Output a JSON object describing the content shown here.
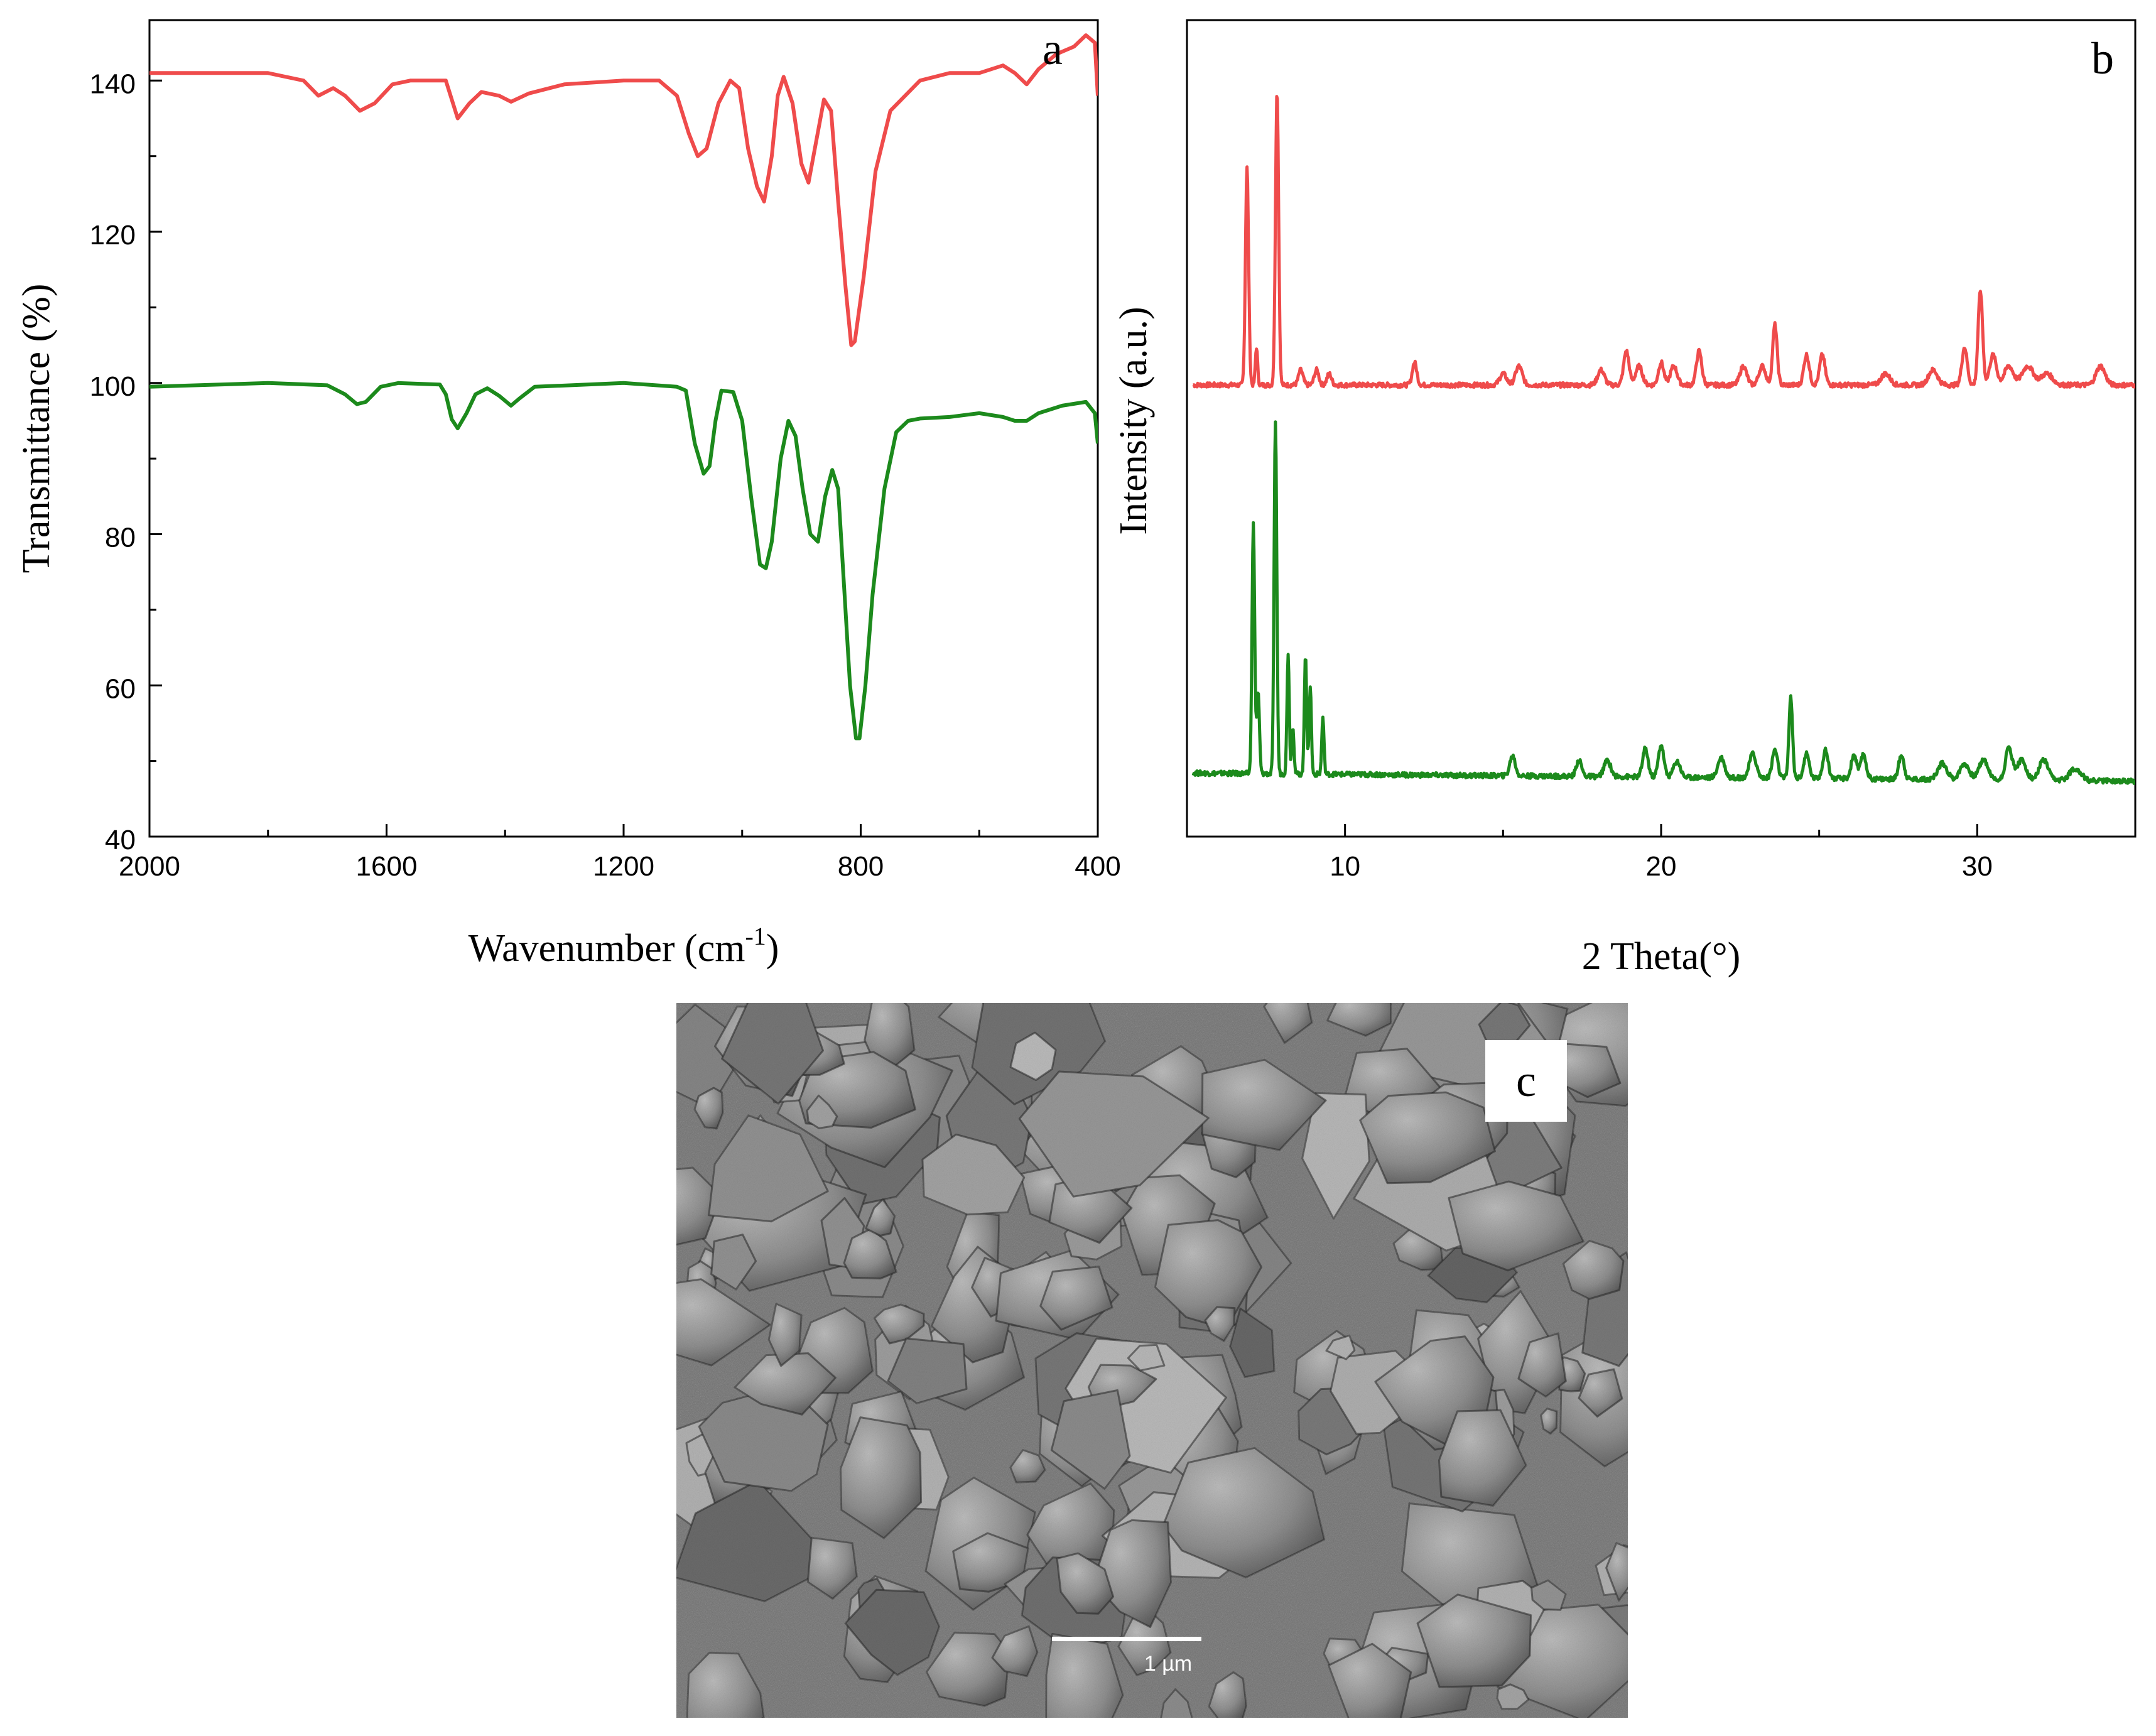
{
  "chart_data": [
    {
      "type": "line",
      "panel_label": "a",
      "xlabel": "Wavenumber (cm",
      "xlabel_sup": "-1",
      "xlabel_end": ")",
      "ylabel": "Transmittance (%)",
      "xlim": [
        2000,
        400
      ],
      "ylim": [
        40,
        148
      ],
      "x_ticks": [
        2000,
        1600,
        1200,
        800,
        400
      ],
      "y_ticks": [
        40,
        60,
        80,
        100,
        120,
        140
      ],
      "series": [
        {
          "color": "#ef4b4b",
          "points": [
            [
              2000,
              141
            ],
            [
              1800,
              141
            ],
            [
              1740,
              140
            ],
            [
              1715,
              138
            ],
            [
              1690,
              139
            ],
            [
              1670,
              138
            ],
            [
              1645,
              136
            ],
            [
              1620,
              137
            ],
            [
              1590,
              139.5
            ],
            [
              1560,
              140
            ],
            [
              1500,
              140
            ],
            [
              1480,
              135
            ],
            [
              1460,
              137
            ],
            [
              1440,
              138.5
            ],
            [
              1410,
              138
            ],
            [
              1390,
              137.2
            ],
            [
              1360,
              138.3
            ],
            [
              1300,
              139.5
            ],
            [
              1200,
              140
            ],
            [
              1140,
              140
            ],
            [
              1110,
              138
            ],
            [
              1090,
              133
            ],
            [
              1075,
              130
            ],
            [
              1060,
              131
            ],
            [
              1040,
              137
            ],
            [
              1020,
              140
            ],
            [
              1005,
              139
            ],
            [
              990,
              131
            ],
            [
              975,
              126
            ],
            [
              963,
              124
            ],
            [
              950,
              130
            ],
            [
              940,
              138
            ],
            [
              930,
              140.5
            ],
            [
              915,
              137
            ],
            [
              900,
              129
            ],
            [
              888,
              126.5
            ],
            [
              875,
              132
            ],
            [
              862,
              137.5
            ],
            [
              850,
              136
            ],
            [
              838,
              124
            ],
            [
              826,
              113
            ],
            [
              816,
              105
            ],
            [
              810,
              105.5
            ],
            [
              795,
              114
            ],
            [
              775,
              128
            ],
            [
              750,
              136
            ],
            [
              700,
              140
            ],
            [
              650,
              141
            ],
            [
              600,
              141
            ],
            [
              560,
              142
            ],
            [
              540,
              141
            ],
            [
              520,
              139.5
            ],
            [
              500,
              141.5
            ],
            [
              470,
              143.5
            ],
            [
              440,
              144.5
            ],
            [
              420,
              146
            ],
            [
              405,
              145
            ],
            [
              400,
              138
            ]
          ]
        },
        {
          "color": "#1c8a1c",
          "points": [
            [
              2000,
              99.5
            ],
            [
              1800,
              100
            ],
            [
              1700,
              99.7
            ],
            [
              1670,
              98.5
            ],
            [
              1650,
              97.2
            ],
            [
              1635,
              97.5
            ],
            [
              1610,
              99.5
            ],
            [
              1580,
              100
            ],
            [
              1510,
              99.8
            ],
            [
              1500,
              98.5
            ],
            [
              1490,
              95.2
            ],
            [
              1480,
              94
            ],
            [
              1465,
              96
            ],
            [
              1450,
              98.5
            ],
            [
              1430,
              99.3
            ],
            [
              1410,
              98.3
            ],
            [
              1390,
              97
            ],
            [
              1375,
              98
            ],
            [
              1350,
              99.5
            ],
            [
              1200,
              100
            ],
            [
              1110,
              99.5
            ],
            [
              1095,
              99
            ],
            [
              1080,
              92
            ],
            [
              1065,
              88
            ],
            [
              1055,
              89
            ],
            [
              1045,
              95
            ],
            [
              1035,
              99
            ],
            [
              1015,
              98.8
            ],
            [
              1000,
              95
            ],
            [
              985,
              85
            ],
            [
              970,
              76
            ],
            [
              960,
              75.5
            ],
            [
              950,
              79
            ],
            [
              935,
              90
            ],
            [
              922,
              95
            ],
            [
              910,
              93
            ],
            [
              898,
              86
            ],
            [
              885,
              80
            ],
            [
              872,
              79
            ],
            [
              860,
              85
            ],
            [
              848,
              88.5
            ],
            [
              838,
              86
            ],
            [
              828,
              73
            ],
            [
              818,
              60
            ],
            [
              808,
              53
            ],
            [
              802,
              53
            ],
            [
              792,
              60
            ],
            [
              780,
              72
            ],
            [
              760,
              86
            ],
            [
              740,
              93.5
            ],
            [
              720,
              95
            ],
            [
              700,
              95.3
            ],
            [
              650,
              95.5
            ],
            [
              600,
              96
            ],
            [
              560,
              95.5
            ],
            [
              540,
              95
            ],
            [
              520,
              95
            ],
            [
              500,
              96
            ],
            [
              460,
              97
            ],
            [
              420,
              97.5
            ],
            [
              405,
              96
            ],
            [
              400,
              92
            ]
          ]
        }
      ]
    },
    {
      "type": "line",
      "panel_label": "b",
      "xlabel": "2 Theta(°)",
      "ylabel": "Intensity (a.u.)",
      "xlim": [
        5,
        35
      ],
      "x_ticks": [
        10,
        20,
        30
      ],
      "y_tick_labels": "none",
      "series": [
        {
          "color": "#ef4b4b",
          "baseline": 0.02,
          "peaks": [
            [
              6.9,
              0.58,
              0.07
            ],
            [
              7.2,
              0.1,
              0.05
            ],
            [
              7.85,
              0.78,
              0.07
            ],
            [
              8.6,
              0.04,
              0.1
            ],
            [
              9.1,
              0.04,
              0.1
            ],
            [
              9.5,
              0.03,
              0.1
            ],
            [
              12.2,
              0.06,
              0.1
            ],
            [
              15,
              0.03,
              0.15
            ],
            [
              15.5,
              0.05,
              0.15
            ],
            [
              18.1,
              0.04,
              0.15
            ],
            [
              18.9,
              0.09,
              0.12
            ],
            [
              19.3,
              0.05,
              0.15
            ],
            [
              20,
              0.06,
              0.12
            ],
            [
              20.4,
              0.05,
              0.15
            ],
            [
              21.2,
              0.09,
              0.12
            ],
            [
              22.6,
              0.05,
              0.15
            ],
            [
              23.2,
              0.05,
              0.15
            ],
            [
              23.6,
              0.16,
              0.1
            ],
            [
              24.6,
              0.08,
              0.12
            ],
            [
              25.1,
              0.08,
              0.12
            ],
            [
              27.1,
              0.03,
              0.2
            ],
            [
              28.6,
              0.04,
              0.2
            ],
            [
              29.6,
              0.1,
              0.12
            ],
            [
              30.1,
              0.25,
              0.1
            ],
            [
              30.5,
              0.08,
              0.15
            ],
            [
              31,
              0.05,
              0.2
            ],
            [
              31.6,
              0.05,
              0.25
            ],
            [
              32.2,
              0.03,
              0.25
            ],
            [
              33.9,
              0.05,
              0.2
            ]
          ]
        },
        {
          "color": "#1c8a1c",
          "baseline": 0.02,
          "peaks": [
            [
              7.1,
              0.62,
              0.06
            ],
            [
              7.25,
              0.2,
              0.06
            ],
            [
              7.8,
              0.88,
              0.06
            ],
            [
              8.2,
              0.3,
              0.05
            ],
            [
              8.35,
              0.12,
              0.05
            ],
            [
              8.75,
              0.3,
              0.05
            ],
            [
              8.9,
              0.22,
              0.05
            ],
            [
              9.3,
              0.14,
              0.05
            ],
            [
              15.3,
              0.05,
              0.12
            ],
            [
              17.4,
              0.04,
              0.12
            ],
            [
              18.3,
              0.04,
              0.15
            ],
            [
              19.5,
              0.07,
              0.12
            ],
            [
              20,
              0.08,
              0.12
            ],
            [
              20.5,
              0.04,
              0.15
            ],
            [
              21.9,
              0.05,
              0.15
            ],
            [
              22.9,
              0.06,
              0.15
            ],
            [
              23.6,
              0.07,
              0.12
            ],
            [
              24.1,
              0.2,
              0.08
            ],
            [
              24.6,
              0.06,
              0.12
            ],
            [
              25.2,
              0.07,
              0.12
            ],
            [
              26.1,
              0.06,
              0.12
            ],
            [
              26.4,
              0.06,
              0.12
            ],
            [
              27.6,
              0.06,
              0.12
            ],
            [
              28.9,
              0.04,
              0.2
            ],
            [
              29.6,
              0.04,
              0.2
            ],
            [
              30.2,
              0.05,
              0.2
            ],
            [
              31,
              0.08,
              0.15
            ],
            [
              31.4,
              0.05,
              0.2
            ],
            [
              32.1,
              0.05,
              0.2
            ],
            [
              33.1,
              0.03,
              0.25
            ]
          ]
        }
      ]
    }
  ],
  "panel_c": {
    "label": "c",
    "scale_bar_label": "1 µm"
  }
}
